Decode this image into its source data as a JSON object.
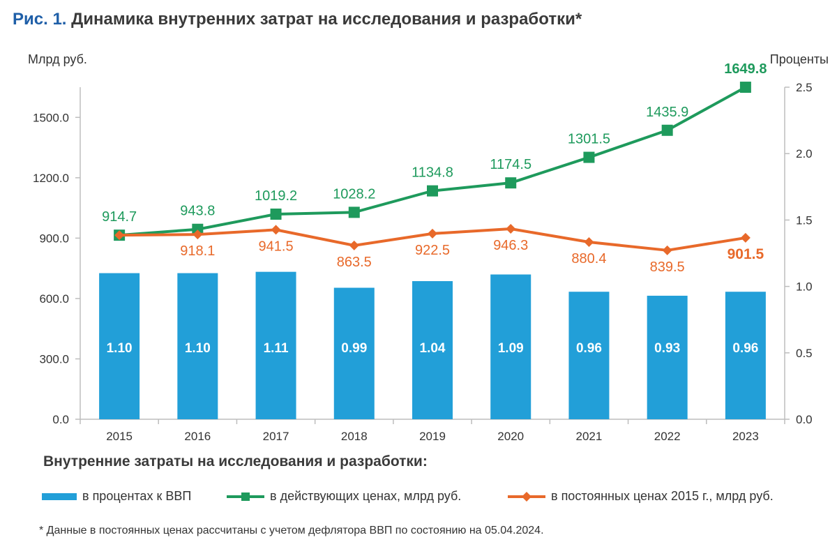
{
  "title": {
    "prefix": "Рис. 1.",
    "text": "Динамика внутренних затрат на исследования и разработки*"
  },
  "left_axis_unit": "Млрд руб.",
  "right_axis_unit": "Проценты",
  "legend": {
    "title": "Внутренние затраты на исследования и разработки:",
    "bars_label": "в процентах к ВВП",
    "current_label": "в действующих ценах, млрд руб.",
    "constant_label": "в постоянных ценах 2015 г., млрд руб."
  },
  "footnote": "* Данные в постоянных ценах рассчитаны с учетом дефлятора ВВП по состоянию на 05.04.2024.",
  "colors": {
    "bar": "#229fd8",
    "current": "#1e9a5c",
    "constant": "#e8692a",
    "axis": "#bdbdbd",
    "text": "#333333"
  },
  "chart_data": {
    "type": "bar+line",
    "categories": [
      "2015",
      "2016",
      "2017",
      "2018",
      "2019",
      "2020",
      "2021",
      "2022",
      "2023"
    ],
    "left_axis": {
      "min": 0,
      "max": 1650,
      "ticks": [
        "0.0",
        "300.0",
        "600.0",
        "900.0",
        "1200.0",
        "1500.0"
      ],
      "tick_values": [
        0,
        300,
        600,
        900,
        1200,
        1500
      ]
    },
    "right_axis": {
      "min": 0,
      "max": 2.5,
      "ticks": [
        "0.0",
        "0.5",
        "1.0",
        "1.5",
        "2.0",
        "2.5"
      ],
      "tick_values": [
        0,
        0.5,
        1.0,
        1.5,
        2.0,
        2.5
      ]
    },
    "bars": {
      "name": "в процентах к ВВП",
      "axis": "right",
      "values": [
        1.1,
        1.1,
        1.11,
        0.99,
        1.04,
        1.09,
        0.96,
        0.93,
        0.96
      ],
      "labels": [
        "1.10",
        "1.10",
        "1.11",
        "0.99",
        "1.04",
        "1.09",
        "0.96",
        "0.93",
        "0.96"
      ]
    },
    "series": [
      {
        "name": "в действующих ценах, млрд руб.",
        "axis": "left",
        "marker": "square",
        "values": [
          914.7,
          943.8,
          1019.2,
          1028.2,
          1134.8,
          1174.5,
          1301.5,
          1435.9,
          1649.8
        ],
        "labels": [
          "914.7",
          "943.8",
          "1019.2",
          "1028.2",
          "1134.8",
          "1174.5",
          "1301.5",
          "1435.9",
          "1649.8"
        ]
      },
      {
        "name": "в постоянных ценах 2015 г., млрд руб.",
        "axis": "left",
        "marker": "diamond",
        "values": [
          914.7,
          918.1,
          941.5,
          863.5,
          922.5,
          946.3,
          880.4,
          839.5,
          901.5
        ],
        "labels": [
          "",
          "918.1",
          "941.5",
          "863.5",
          "922.5",
          "946.3",
          "880.4",
          "839.5",
          "901.5"
        ]
      }
    ]
  }
}
